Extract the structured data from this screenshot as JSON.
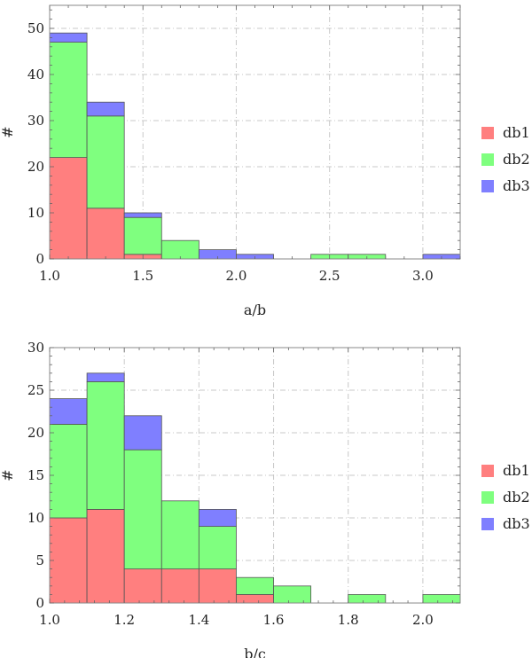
{
  "chart_data": [
    {
      "type": "bar",
      "stacked": true,
      "xlabel": "a/b",
      "ylabel": "#",
      "xlim": [
        1.0,
        3.2
      ],
      "ylim": [
        0,
        55
      ],
      "bin_width": 0.2,
      "bin_starts": [
        1.0,
        1.2,
        1.4,
        1.6,
        1.8,
        2.0,
        2.2,
        2.4,
        2.6,
        2.8,
        3.0
      ],
      "xticks": [
        1.0,
        1.5,
        2.0,
        2.5,
        3.0
      ],
      "xtick_labels": [
        "1.0",
        "1.5",
        "2.0",
        "2.5",
        "3.0"
      ],
      "yticks": [
        0,
        10,
        20,
        30,
        40,
        50
      ],
      "ytick_labels": [
        "0",
        "10",
        "20",
        "30",
        "40",
        "50"
      ],
      "grid": true,
      "legend_position": "right",
      "series": [
        {
          "name": "db1",
          "color": "#ff7f7f",
          "values": [
            22,
            11,
            1,
            0,
            0,
            0,
            0,
            0,
            0,
            0,
            0
          ]
        },
        {
          "name": "db2",
          "color": "#7fff7f",
          "values": [
            25,
            20,
            8,
            4,
            0,
            0,
            0,
            1,
            1,
            0,
            0
          ]
        },
        {
          "name": "db3",
          "color": "#7f7fff",
          "values": [
            2,
            3,
            1,
            0,
            2,
            1,
            0,
            0,
            0,
            0,
            1
          ]
        }
      ]
    },
    {
      "type": "bar",
      "stacked": true,
      "xlabel": "b/c",
      "ylabel": "#",
      "xlim": [
        1.0,
        2.1
      ],
      "ylim": [
        0,
        30
      ],
      "bin_width": 0.1,
      "bin_starts": [
        1.0,
        1.1,
        1.2,
        1.3,
        1.4,
        1.5,
        1.6,
        1.7,
        1.8,
        1.9,
        2.0
      ],
      "xticks": [
        1.0,
        1.2,
        1.4,
        1.6,
        1.8,
        2.0
      ],
      "xtick_labels": [
        "1.0",
        "1.2",
        "1.4",
        "1.6",
        "1.8",
        "2.0"
      ],
      "yticks": [
        0,
        5,
        10,
        15,
        20,
        25,
        30
      ],
      "ytick_labels": [
        "0",
        "5",
        "10",
        "15",
        "20",
        "25",
        "30"
      ],
      "grid": true,
      "legend_position": "right",
      "series": [
        {
          "name": "db1",
          "color": "#ff7f7f",
          "values": [
            10,
            11,
            4,
            4,
            4,
            1,
            0,
            0,
            0,
            0,
            0
          ]
        },
        {
          "name": "db2",
          "color": "#7fff7f",
          "values": [
            11,
            15,
            14,
            8,
            5,
            2,
            2,
            0,
            1,
            0,
            1
          ]
        },
        {
          "name": "db3",
          "color": "#7f7fff",
          "values": [
            3,
            1,
            4,
            0,
            2,
            0,
            0,
            0,
            0,
            0,
            0
          ]
        }
      ]
    }
  ]
}
